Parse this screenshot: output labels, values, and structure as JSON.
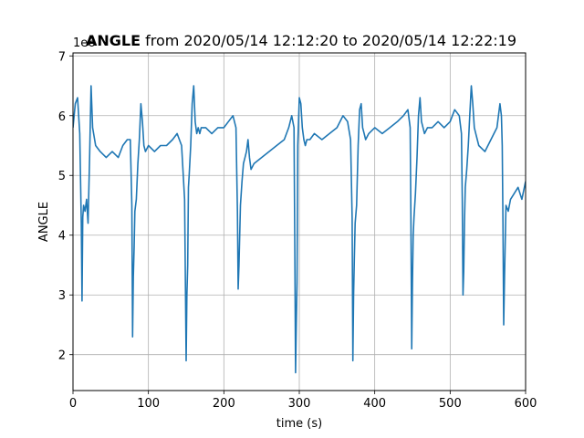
{
  "chart_data": {
    "type": "line",
    "title_bold": "ANGLE",
    "title_rest": " from 2020/05/14 12:12:20 to 2020/05/14 12:22:19",
    "xlabel": "time (s)",
    "ylabel": "ANGLE",
    "offset_label": "1e6",
    "xlim": [
      0,
      600
    ],
    "ylim": [
      1.4,
      7.05
    ],
    "xticks": [
      0,
      100,
      200,
      300,
      400,
      500,
      600
    ],
    "yticks": [
      2,
      3,
      4,
      5,
      6,
      7
    ],
    "grid": true,
    "line_color": "#1f77b4",
    "series": [
      {
        "x": [
          0,
          3,
          6,
          9,
          11,
          12,
          13,
          14,
          16,
          18,
          20,
          22,
          24,
          26,
          30,
          36,
          44,
          52,
          60,
          66,
          72,
          76,
          78,
          79,
          80,
          81,
          82,
          84,
          86,
          88,
          90,
          92,
          94,
          96,
          100,
          108,
          116,
          124,
          132,
          138,
          144,
          148,
          150,
          151,
          152,
          153,
          154,
          156,
          158,
          160,
          162,
          164,
          166,
          168,
          170,
          176,
          184,
          192,
          200,
          206,
          212,
          216,
          218,
          219,
          220,
          221,
          222,
          224,
          226,
          228,
          230,
          232,
          234,
          236,
          240,
          250,
          260,
          270,
          280,
          286,
          290,
          293,
          294,
          295,
          296,
          297,
          298,
          300,
          302,
          304,
          306,
          308,
          310,
          314,
          320,
          330,
          340,
          350,
          358,
          364,
          368,
          370,
          371,
          372,
          373,
          374,
          376,
          378,
          380,
          382,
          384,
          386,
          388,
          392,
          400,
          410,
          420,
          430,
          438,
          444,
          447,
          448,
          449,
          450,
          451,
          452,
          454,
          456,
          458,
          460,
          462,
          464,
          466,
          470,
          476,
          484,
          492,
          500,
          506,
          512,
          515,
          516,
          517,
          518,
          519,
          520,
          522,
          524,
          526,
          528,
          530,
          532,
          534,
          538,
          546,
          554,
          562,
          566,
          568,
          569,
          570,
          571,
          572,
          574,
          577,
          580,
          585,
          590,
          595,
          600
        ],
        "values": [
          5.8,
          6.2,
          6.3,
          5.7,
          4.2,
          2.9,
          4.3,
          4.5,
          4.4,
          4.6,
          4.2,
          5.3,
          6.5,
          5.8,
          5.5,
          5.4,
          5.3,
          5.4,
          5.3,
          5.5,
          5.6,
          5.6,
          4.5,
          2.3,
          3.3,
          3.8,
          4.4,
          4.6,
          5.2,
          5.6,
          6.2,
          5.9,
          5.5,
          5.4,
          5.5,
          5.4,
          5.5,
          5.5,
          5.6,
          5.7,
          5.5,
          4.6,
          1.9,
          3.0,
          3.5,
          4.8,
          5.0,
          5.5,
          6.2,
          6.5,
          5.9,
          5.7,
          5.8,
          5.7,
          5.8,
          5.8,
          5.7,
          5.8,
          5.8,
          5.9,
          6.0,
          5.8,
          4.4,
          3.1,
          3.5,
          4.0,
          4.5,
          4.9,
          5.2,
          5.3,
          5.4,
          5.6,
          5.3,
          5.1,
          5.2,
          5.3,
          5.4,
          5.5,
          5.6,
          5.8,
          6.0,
          5.8,
          4.0,
          1.7,
          2.5,
          3.2,
          5.5,
          6.3,
          6.2,
          5.8,
          5.6,
          5.5,
          5.6,
          5.6,
          5.7,
          5.6,
          5.7,
          5.8,
          6.0,
          5.9,
          5.6,
          4.3,
          1.9,
          3.0,
          3.6,
          4.2,
          4.5,
          5.5,
          6.1,
          6.2,
          5.8,
          5.7,
          5.6,
          5.7,
          5.8,
          5.7,
          5.8,
          5.9,
          6.0,
          6.1,
          5.8,
          4.3,
          2.1,
          3.2,
          4.0,
          4.3,
          4.7,
          5.3,
          6.0,
          6.3,
          5.9,
          5.8,
          5.7,
          5.8,
          5.8,
          5.9,
          5.8,
          5.9,
          6.1,
          6.0,
          5.7,
          4.6,
          3.0,
          3.4,
          4.2,
          4.8,
          5.1,
          5.5,
          6.0,
          6.5,
          6.2,
          5.8,
          5.7,
          5.5,
          5.4,
          5.6,
          5.8,
          6.2,
          6.0,
          5.5,
          4.2,
          2.5,
          3.3,
          4.5,
          4.4,
          4.6,
          4.7,
          4.8,
          4.6,
          4.9
        ]
      }
    ]
  }
}
